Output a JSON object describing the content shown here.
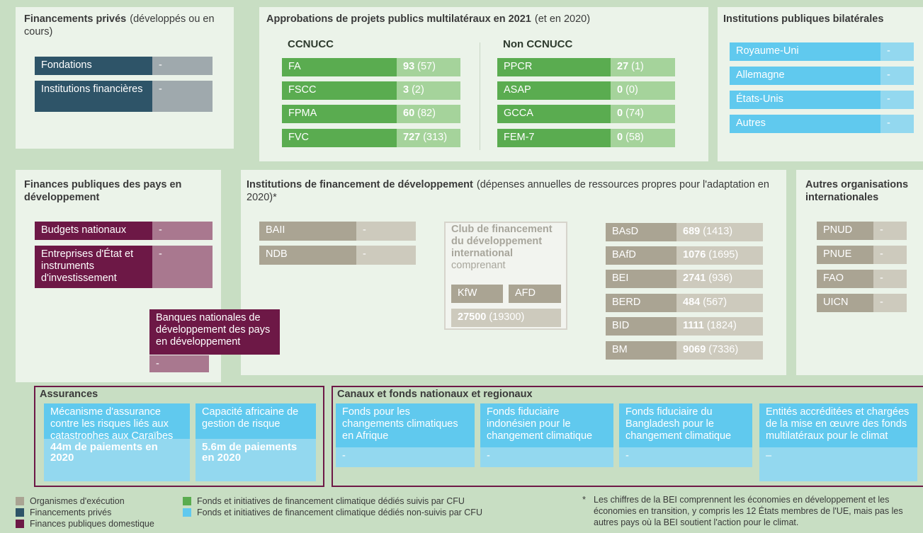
{
  "private": {
    "title": "Financements privés",
    "subtitle": "(développés ou en cours)",
    "items": [
      {
        "label": "Fondations",
        "value": "-"
      },
      {
        "label": "Institutions financières",
        "value": "-"
      }
    ]
  },
  "multilateral": {
    "title": "Approbations de projets publics multilatéraux en 2021",
    "subtitle": "(et en 2020)",
    "groups": [
      {
        "name": "CCNUCC",
        "rows": [
          {
            "label": "FA",
            "value": "93",
            "prior": "(57)"
          },
          {
            "label": "FSCC",
            "value": "3",
            "prior": "(2)"
          },
          {
            "label": "FPMA",
            "value": "60",
            "prior": "(82)"
          },
          {
            "label": "FVC",
            "value": "727",
            "prior": "(313)"
          }
        ]
      },
      {
        "name": "Non CCNUCC",
        "rows": [
          {
            "label": "PPCR",
            "value": "27",
            "prior": "(1)"
          },
          {
            "label": "ASAP",
            "value": "0",
            "prior": "(0)"
          },
          {
            "label": "GCCA",
            "value": "0",
            "prior": "(74)"
          },
          {
            "label": "FEM-7",
            "value": "0",
            "prior": "(58)"
          }
        ]
      }
    ]
  },
  "bilateral": {
    "title": "Institutions publiques bilatérales",
    "items": [
      {
        "label": "Royaume-Uni",
        "value": "-"
      },
      {
        "label": "Allemagne",
        "value": "-"
      },
      {
        "label": "États-Unis",
        "value": "-"
      },
      {
        "label": "Autres",
        "value": "-"
      }
    ]
  },
  "domestic": {
    "title": "Finances publiques des pays en développement",
    "items": [
      {
        "label": "Budgets nationaux",
        "value": "-"
      },
      {
        "label": "Entreprises d'État et instruments d'investissement",
        "value": "-"
      },
      {
        "label": "Banques nationales de développement des pays en développement",
        "value": "-"
      }
    ]
  },
  "dfi": {
    "title": "Institutions de financement de développement",
    "subtitle": "(dépenses annuelles de ressources propres pour l'adaptation en 2020)*",
    "left": [
      {
        "label": "BAII",
        "value": "-"
      },
      {
        "label": "NDB",
        "value": "-"
      }
    ],
    "club": {
      "title": "Club de financement du développement international",
      "subtitle": "comprenant",
      "members": [
        "KfW",
        "AFD"
      ],
      "value": "27500",
      "prior": "(19300)"
    },
    "right": [
      {
        "label": "BAsD",
        "value": "689",
        "prior": "(1413)"
      },
      {
        "label": "BAfD",
        "value": "1076",
        "prior": "(1695)"
      },
      {
        "label": "BEI",
        "value": "2741",
        "prior": "(936)"
      },
      {
        "label": "BERD",
        "value": "484",
        "prior": "(567)"
      },
      {
        "label": "BID",
        "value": "1111",
        "prior": "(1824)"
      },
      {
        "label": "BM",
        "value": "9069",
        "prior": "(7336)"
      }
    ]
  },
  "other": {
    "title": "Autres organisations internationales",
    "items": [
      {
        "label": "PNUD",
        "value": "-"
      },
      {
        "label": "PNUE",
        "value": "-"
      },
      {
        "label": "FAO",
        "value": "-"
      },
      {
        "label": "UICN",
        "value": "-"
      }
    ]
  },
  "insurance": {
    "title": "Assurances",
    "cards": [
      {
        "label": "Mécanisme d'assurance contre les risques liés aux catastrophes aux Caraïbes",
        "value": "44m de paiements en 2020"
      },
      {
        "label": "Capacité africaine de gestion de risque",
        "value": "5.6m de paiements en 2020"
      }
    ]
  },
  "channels": {
    "title": "Canaux et fonds nationaux et regionaux",
    "cards": [
      {
        "label": "Fonds pour les changements climatiques en Afrique",
        "value": "-"
      },
      {
        "label": "Fonds fiduciaire indonésien pour le changement climatique",
        "value": "-"
      },
      {
        "label": "Fonds fiduciaire du Bangladesh pour le changement climatique",
        "value": "-"
      },
      {
        "label": "Entités accréditées et chargées de la mise en œuvre des fonds multilatéraux pour le climat",
        "value": "–"
      }
    ]
  },
  "legend": [
    {
      "label": "Organismes d'exécution",
      "color": "#aaa493"
    },
    {
      "label": "Financements privés",
      "color": "#2e5468"
    },
    {
      "label": "Finances publiques domestique",
      "color": "#6d1846"
    },
    {
      "label": "Fonds et initiatives de financement climatique dédiés suivis par CFU",
      "color": "#5aac50"
    },
    {
      "label": "Fonds et initiatives de financement climatique dédiés  non-suivis par CFU",
      "color": "#60c9ee"
    }
  ],
  "footnote": {
    "mark": "*",
    "text": "Les chiffres de la BEI comprennent les économies en développement et les économies en transition, y compris les 12 États membres de l'UE, mais pas les autres pays où la BEI soutient l'action pour le climat."
  }
}
